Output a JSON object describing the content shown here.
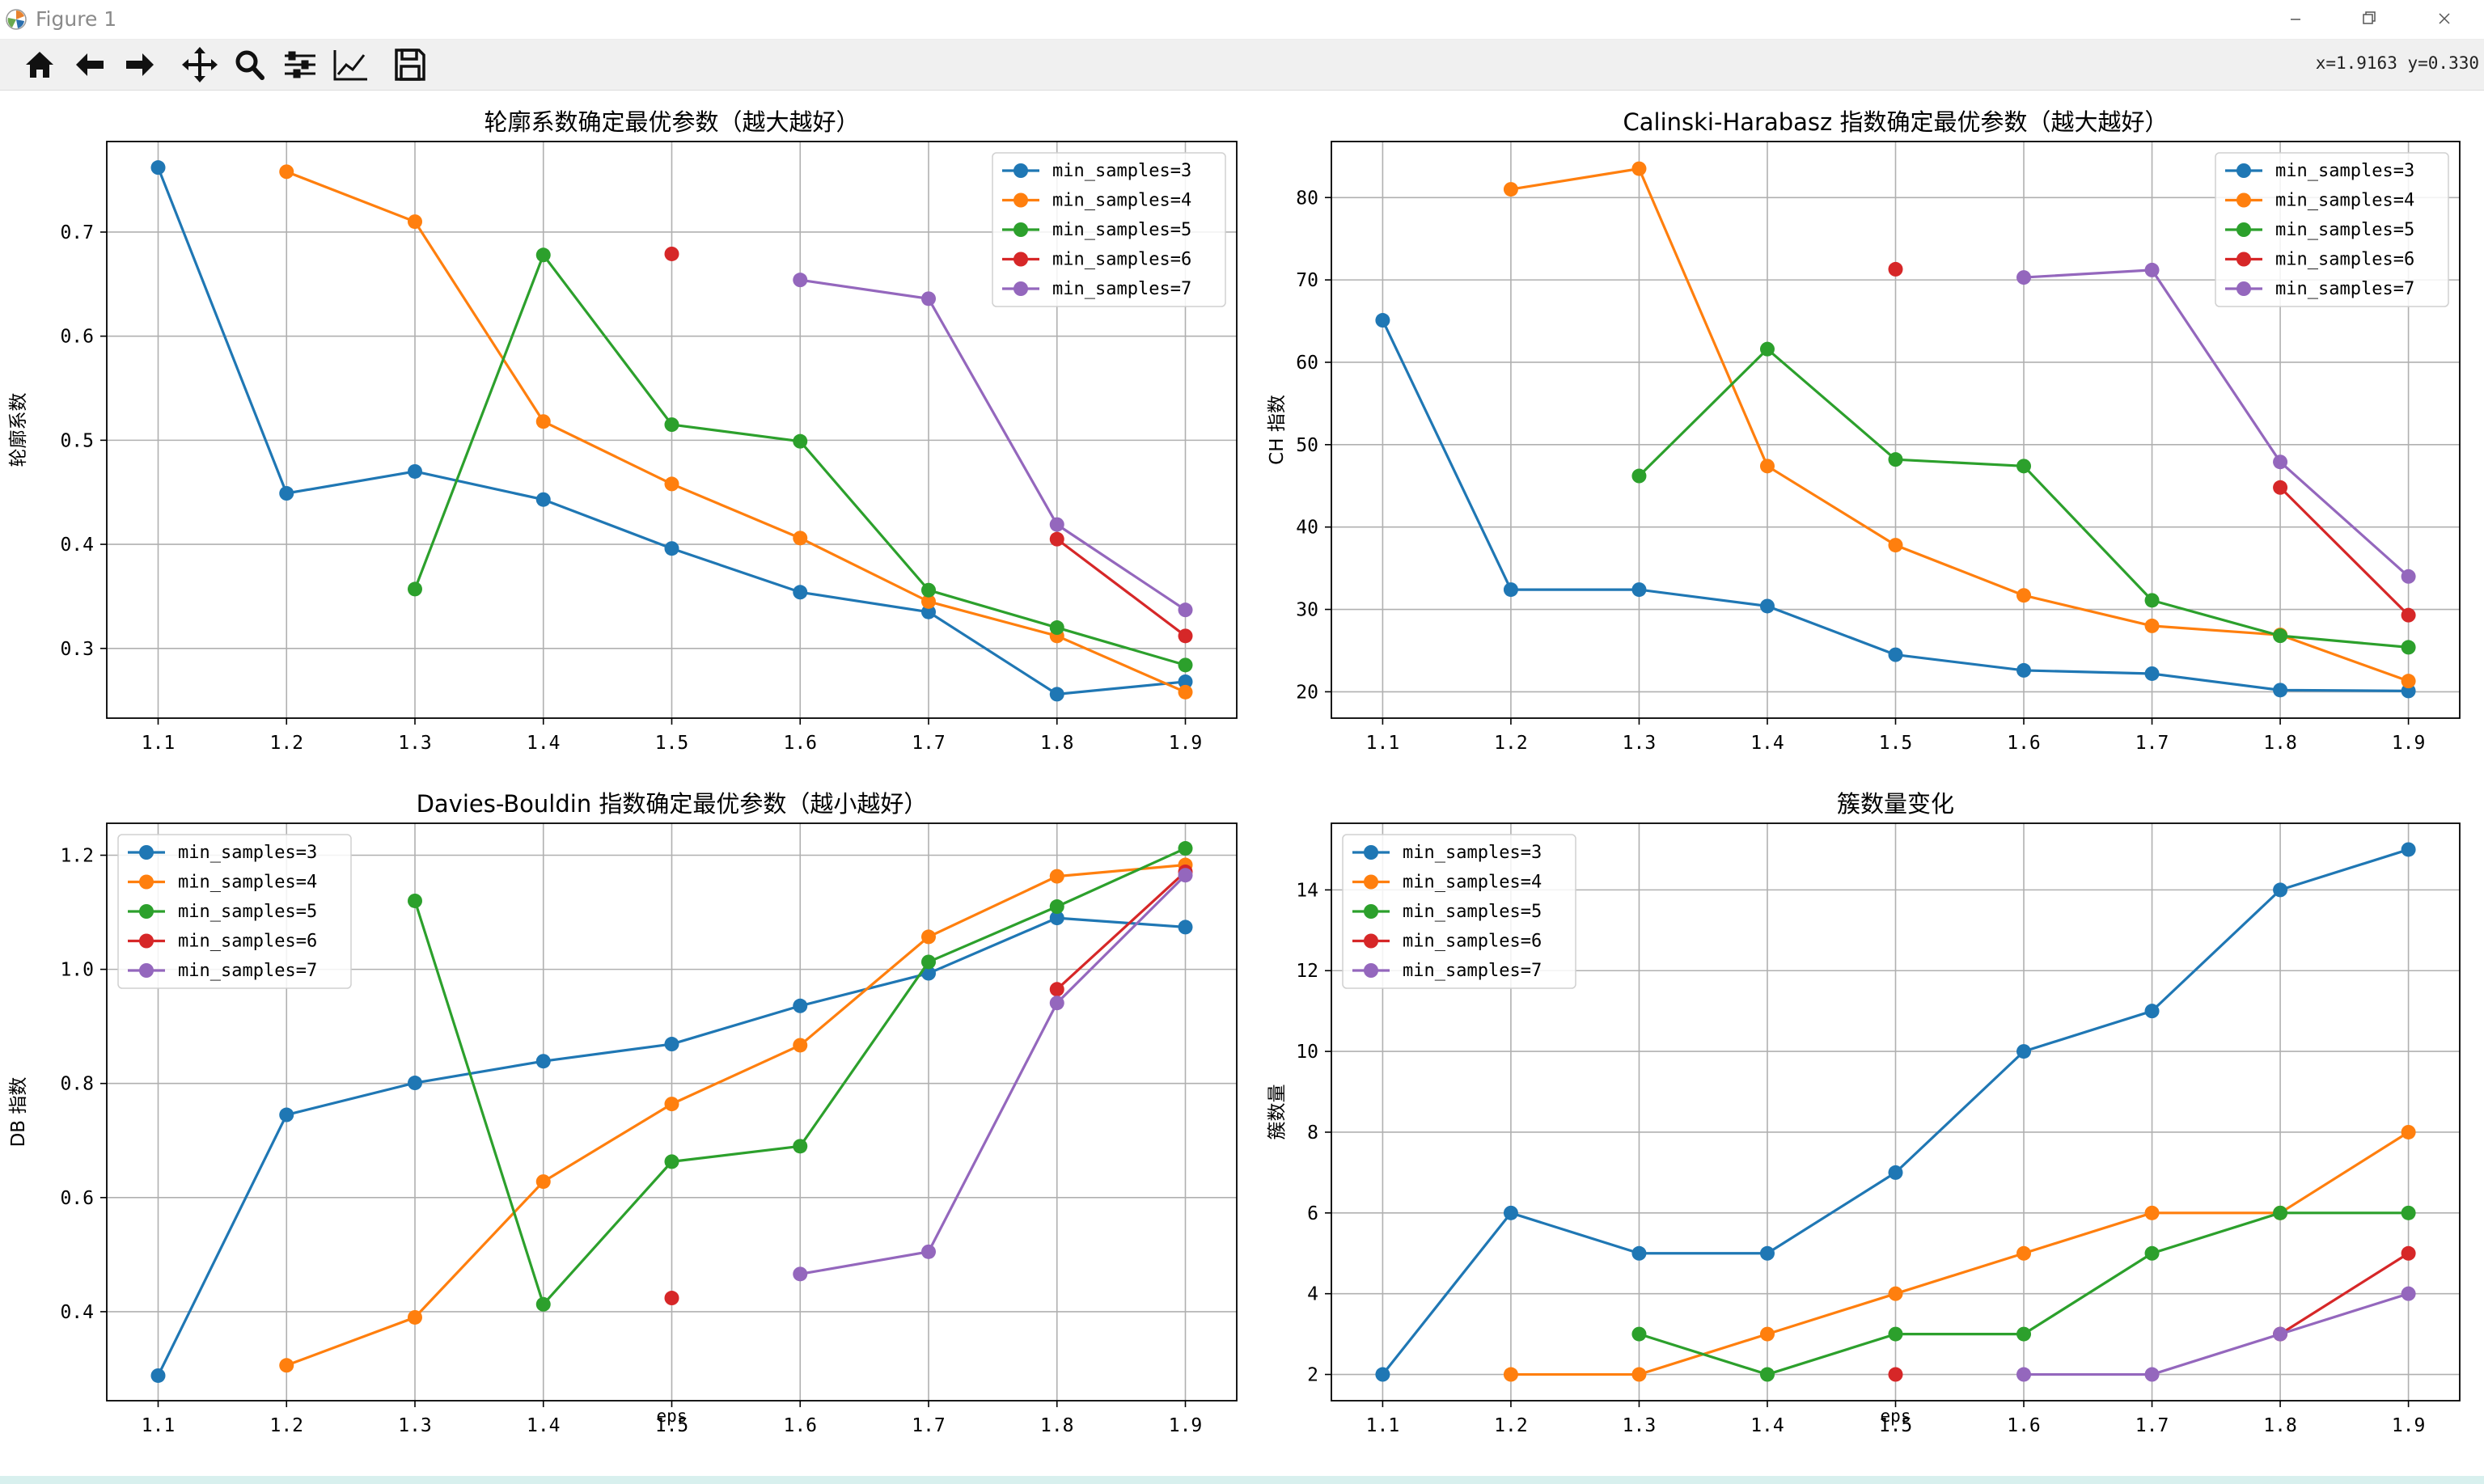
{
  "window": {
    "title": "Figure 1"
  },
  "toolbar": {
    "buttons": [
      {
        "icon": "home-icon",
        "name": "home"
      },
      {
        "icon": "back-arrow-icon",
        "name": "back"
      },
      {
        "icon": "forward-arrow-icon",
        "name": "forward"
      },
      {
        "icon": "pan-icon",
        "name": "pan"
      },
      {
        "icon": "zoom-icon",
        "name": "zoom"
      },
      {
        "icon": "subplots-icon",
        "name": "subplots"
      },
      {
        "icon": "axes-edit-icon",
        "name": "edit-axes"
      },
      {
        "icon": "save-icon",
        "name": "save"
      }
    ],
    "coords": "x=1.9163  y=0.330"
  },
  "colors": {
    "series": [
      "#1f77b4",
      "#ff7f0e",
      "#2ca02c",
      "#d62728",
      "#9467bd"
    ]
  },
  "chart_data": [
    {
      "type": "line",
      "title": "轮廓系数确定最优参数（越大越好）",
      "xlabel": "",
      "ylabel": "轮廓系数",
      "x": [
        1.1,
        1.2,
        1.3,
        1.4,
        1.5,
        1.6,
        1.7,
        1.8,
        1.9
      ],
      "xticks": [
        "1.1",
        "1.2",
        "1.3",
        "1.4",
        "1.5",
        "1.6",
        "1.7",
        "1.8",
        "1.9"
      ],
      "ylim": [
        0.233,
        0.787
      ],
      "yticks": [
        0.3,
        0.4,
        0.5,
        0.6,
        0.7
      ],
      "ytick_labels": [
        "0.3",
        "0.4",
        "0.5",
        "0.6",
        "0.7"
      ],
      "grid": true,
      "legend_position": "top-right",
      "series": [
        {
          "name": "min_samples=3",
          "values": [
            0.762,
            0.449,
            0.47,
            0.443,
            0.396,
            0.354,
            0.335,
            0.256,
            0.268
          ]
        },
        {
          "name": "min_samples=4",
          "values": [
            null,
            0.758,
            0.71,
            0.518,
            0.458,
            0.406,
            0.345,
            0.312,
            0.258
          ]
        },
        {
          "name": "min_samples=5",
          "values": [
            null,
            null,
            0.357,
            0.678,
            0.515,
            0.499,
            0.356,
            0.32,
            0.284
          ]
        },
        {
          "name": "min_samples=6",
          "values": [
            null,
            null,
            null,
            null,
            0.679,
            null,
            null,
            0.405,
            0.312
          ]
        },
        {
          "name": "min_samples=7",
          "values": [
            null,
            null,
            null,
            null,
            null,
            0.654,
            0.636,
            0.419,
            0.337
          ]
        }
      ]
    },
    {
      "type": "line",
      "title": "Calinski-Harabasz 指数确定最优参数（越大越好）",
      "xlabel": "",
      "ylabel": "CH 指数",
      "x": [
        1.1,
        1.2,
        1.3,
        1.4,
        1.5,
        1.6,
        1.7,
        1.8,
        1.9
      ],
      "xticks": [
        "1.1",
        "1.2",
        "1.3",
        "1.4",
        "1.5",
        "1.6",
        "1.7",
        "1.8",
        "1.9"
      ],
      "ylim": [
        16.8,
        86.8
      ],
      "yticks": [
        20,
        30,
        40,
        50,
        60,
        70,
        80
      ],
      "ytick_labels": [
        "20",
        "30",
        "40",
        "50",
        "60",
        "70",
        "80"
      ],
      "grid": true,
      "legend_position": "top-right",
      "series": [
        {
          "name": "min_samples=3",
          "values": [
            65.1,
            32.4,
            32.4,
            30.4,
            24.5,
            22.6,
            22.2,
            20.2,
            20.1
          ]
        },
        {
          "name": "min_samples=4",
          "values": [
            null,
            81.0,
            83.5,
            47.4,
            37.8,
            31.7,
            28.0,
            26.9,
            21.3
          ]
        },
        {
          "name": "min_samples=5",
          "values": [
            null,
            null,
            46.2,
            61.6,
            48.2,
            47.4,
            31.1,
            26.8,
            25.4
          ]
        },
        {
          "name": "min_samples=6",
          "values": [
            null,
            null,
            null,
            null,
            71.3,
            null,
            null,
            44.8,
            29.3
          ]
        },
        {
          "name": "min_samples=7",
          "values": [
            null,
            null,
            null,
            null,
            null,
            70.3,
            71.2,
            47.9,
            34.0
          ]
        }
      ]
    },
    {
      "type": "line",
      "title": "Davies-Bouldin 指数确定最优参数（越小越好）",
      "xlabel": "eps",
      "ylabel": "DB 指数",
      "x": [
        1.1,
        1.2,
        1.3,
        1.4,
        1.5,
        1.6,
        1.7,
        1.8,
        1.9
      ],
      "xticks": [
        "1.1",
        "1.2",
        "1.3",
        "1.4",
        "1.5",
        "1.6",
        "1.7",
        "1.8",
        "1.9"
      ],
      "ylim": [
        0.244,
        1.256
      ],
      "yticks": [
        0.4,
        0.6,
        0.8,
        1.0,
        1.2
      ],
      "ytick_labels": [
        "0.4",
        "0.6",
        "0.8",
        "1.0",
        "1.2"
      ],
      "grid": true,
      "legend_position": "top-left",
      "series": [
        {
          "name": "min_samples=3",
          "values": [
            0.288,
            0.745,
            0.801,
            0.839,
            0.869,
            0.936,
            0.993,
            1.09,
            1.074
          ]
        },
        {
          "name": "min_samples=4",
          "values": [
            null,
            0.306,
            0.39,
            0.628,
            0.764,
            0.867,
            1.057,
            1.163,
            1.183
          ]
        },
        {
          "name": "min_samples=5",
          "values": [
            null,
            null,
            1.12,
            0.413,
            0.663,
            0.69,
            1.013,
            1.11,
            1.212
          ]
        },
        {
          "name": "min_samples=6",
          "values": [
            null,
            null,
            null,
            null,
            0.424,
            null,
            null,
            0.965,
            1.171
          ]
        },
        {
          "name": "min_samples=7",
          "values": [
            null,
            null,
            null,
            null,
            null,
            0.466,
            0.505,
            0.941,
            1.165
          ]
        }
      ]
    },
    {
      "type": "line",
      "title": "簇数量变化",
      "xlabel": "eps",
      "ylabel": "簇数量",
      "x": [
        1.1,
        1.2,
        1.3,
        1.4,
        1.5,
        1.6,
        1.7,
        1.8,
        1.9
      ],
      "xticks": [
        "1.1",
        "1.2",
        "1.3",
        "1.4",
        "1.5",
        "1.6",
        "1.7",
        "1.8",
        "1.9"
      ],
      "ylim": [
        1.35,
        15.65
      ],
      "yticks": [
        2,
        4,
        6,
        8,
        10,
        12,
        14
      ],
      "ytick_labels": [
        "2",
        "4",
        "6",
        "8",
        "10",
        "12",
        "14"
      ],
      "grid": true,
      "legend_position": "top-left",
      "series": [
        {
          "name": "min_samples=3",
          "values": [
            2,
            6,
            5,
            5,
            7,
            10,
            11,
            14,
            15
          ]
        },
        {
          "name": "min_samples=4",
          "values": [
            null,
            2,
            2,
            3,
            4,
            5,
            6,
            6,
            8
          ]
        },
        {
          "name": "min_samples=5",
          "values": [
            null,
            null,
            3,
            2,
            3,
            3,
            5,
            6,
            6
          ]
        },
        {
          "name": "min_samples=6",
          "values": [
            null,
            null,
            null,
            null,
            2,
            null,
            null,
            3,
            5
          ]
        },
        {
          "name": "min_samples=7",
          "values": [
            null,
            null,
            null,
            null,
            null,
            2,
            2,
            3,
            4
          ]
        }
      ]
    }
  ]
}
